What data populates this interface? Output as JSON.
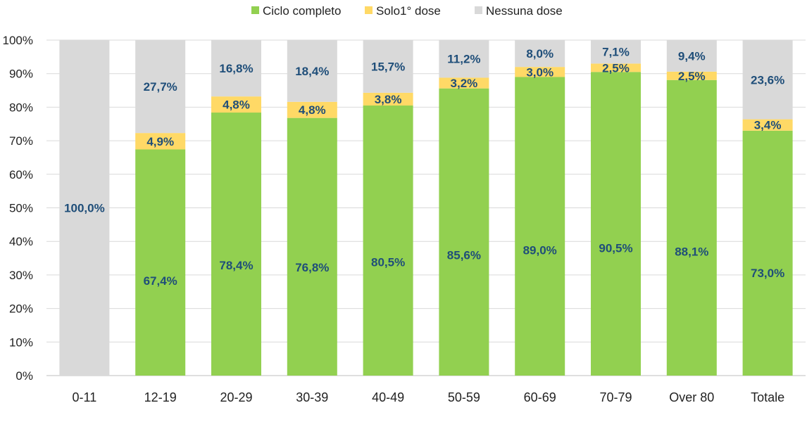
{
  "chart_data": {
    "type": "bar",
    "stacked": true,
    "categories": [
      "0-11",
      "12-19",
      "20-29",
      "30-39",
      "40-49",
      "50-59",
      "60-69",
      "70-79",
      "Over 80",
      "Totale"
    ],
    "series": [
      {
        "name": "Ciclo completo",
        "color": "#92d050",
        "values": [
          0,
          67.4,
          78.4,
          76.8,
          80.5,
          85.6,
          89.0,
          90.5,
          88.1,
          73.0
        ],
        "labels": [
          "",
          "67,4%",
          "78,4%",
          "76,8%",
          "80,5%",
          "85,6%",
          "89,0%",
          "90,5%",
          "88,1%",
          "73,0%"
        ]
      },
      {
        "name": "Solo1° dose",
        "color": "#ffd966",
        "values": [
          0,
          4.9,
          4.8,
          4.8,
          3.8,
          3.2,
          3.0,
          2.5,
          2.5,
          3.4
        ],
        "labels": [
          "",
          "4,9%",
          "4,8%",
          "4,8%",
          "3,8%",
          "3,2%",
          "3,0%",
          "2,5%",
          "2,5%",
          "3,4%"
        ]
      },
      {
        "name": "Nessuna dose",
        "color": "#d9d9d9",
        "values": [
          100.0,
          27.7,
          16.8,
          18.4,
          15.7,
          11.2,
          8.0,
          7.1,
          9.4,
          23.6
        ],
        "labels": [
          "100,0%",
          "27,7%",
          "16,8%",
          "18,4%",
          "15,7%",
          "11,2%",
          "8,0%",
          "7,1%",
          "9,4%",
          "23,6%"
        ]
      }
    ],
    "y_ticks": [
      "0%",
      "10%",
      "20%",
      "30%",
      "40%",
      "50%",
      "60%",
      "70%",
      "80%",
      "90%",
      "100%"
    ],
    "ylim": [
      0,
      100
    ],
    "grid": true,
    "legend_position": "top-center",
    "title": "",
    "xlabel": "",
    "ylabel": ""
  }
}
